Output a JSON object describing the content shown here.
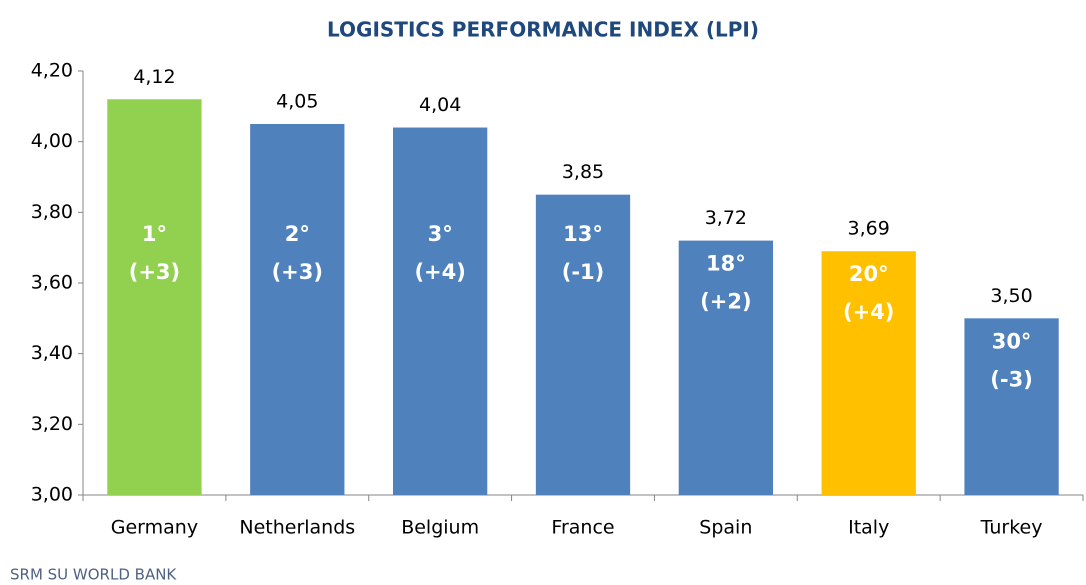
{
  "chart_data": {
    "type": "bar",
    "title": "LOGISTICS PERFORMANCE INDEX (LPI)",
    "categories": [
      "Germany",
      "Netherlands",
      "Belgium",
      "France",
      "Spain",
      "Italy",
      "Turkey"
    ],
    "values": [
      4.12,
      4.05,
      4.04,
      3.85,
      3.72,
      3.69,
      3.5
    ],
    "value_labels": [
      "4,12",
      "4,05",
      "4,04",
      "3,85",
      "3,72",
      "3,69",
      "3,50"
    ],
    "rank_labels": [
      "1°",
      "2°",
      "3°",
      "13°",
      "18°",
      "20°",
      "30°"
    ],
    "change_labels": [
      "(+3)",
      "(+3)",
      "(+4)",
      "(-1)",
      "(+2)",
      "(+4)",
      "(-3)"
    ],
    "colors": [
      "#92d050",
      "#4f81bd",
      "#4f81bd",
      "#4f81bd",
      "#4f81bd",
      "#ffc000",
      "#4f81bd"
    ],
    "ylim": [
      3.0,
      4.2
    ],
    "yticks": [
      {
        "value": 3.0,
        "label": "3,00"
      },
      {
        "value": 3.2,
        "label": "3,20"
      },
      {
        "value": 3.4,
        "label": "3,40"
      },
      {
        "value": 3.6,
        "label": "3,60"
      },
      {
        "value": 3.8,
        "label": "3,80"
      },
      {
        "value": 4.0,
        "label": "4,00"
      },
      {
        "value": 4.2,
        "label": "4,20"
      }
    ],
    "grid": false,
    "source": "SRM SU WORLD BANK"
  }
}
